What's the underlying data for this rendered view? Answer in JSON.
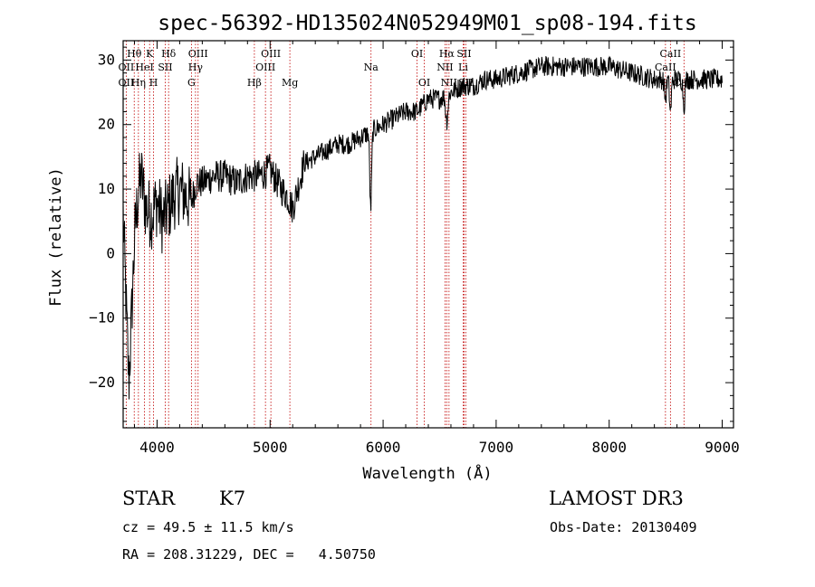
{
  "chart_data": {
    "type": "line",
    "title": "spec-56392-HD135024N052949M01_sp08-194.fits",
    "xlabel": "Wavelength (Å)",
    "ylabel": "Flux (relative)",
    "xlim": [
      3700,
      9100
    ],
    "ylim": [
      -27,
      33
    ],
    "xticks": [
      4000,
      5000,
      6000,
      7000,
      8000,
      9000
    ],
    "yticks": [
      -20,
      -10,
      0,
      10,
      20,
      30
    ],
    "grid": false,
    "spectrum_anchors": [
      [
        3700,
        6
      ],
      [
        3730,
        -10
      ],
      [
        3750,
        -20
      ],
      [
        3770,
        -12
      ],
      [
        3800,
        2
      ],
      [
        3830,
        9
      ],
      [
        3860,
        12
      ],
      [
        3900,
        7
      ],
      [
        3950,
        6
      ],
      [
        4000,
        8
      ],
      [
        4050,
        5
      ],
      [
        4100,
        7
      ],
      [
        4150,
        9
      ],
      [
        4200,
        10
      ],
      [
        4250,
        9
      ],
      [
        4300,
        8
      ],
      [
        4350,
        11
      ],
      [
        4400,
        11
      ],
      [
        4500,
        12
      ],
      [
        4600,
        12
      ],
      [
        4700,
        11
      ],
      [
        4800,
        12
      ],
      [
        4900,
        12
      ],
      [
        5000,
        13
      ],
      [
        5100,
        10
      ],
      [
        5150,
        9
      ],
      [
        5200,
        7
      ],
      [
        5300,
        14
      ],
      [
        5400,
        15
      ],
      [
        5500,
        16
      ],
      [
        5600,
        17
      ],
      [
        5700,
        17
      ],
      [
        5800,
        18
      ],
      [
        5900,
        19
      ],
      [
        6000,
        20
      ],
      [
        6100,
        21
      ],
      [
        6200,
        22
      ],
      [
        6300,
        22
      ],
      [
        6400,
        24
      ],
      [
        6500,
        24
      ],
      [
        6600,
        25
      ],
      [
        6700,
        26
      ],
      [
        6800,
        26
      ],
      [
        6900,
        27
      ],
      [
        7000,
        27
      ],
      [
        7200,
        28
      ],
      [
        7400,
        29
      ],
      [
        7600,
        29
      ],
      [
        7800,
        29
      ],
      [
        8000,
        29
      ],
      [
        8200,
        28
      ],
      [
        8400,
        27
      ],
      [
        8600,
        27
      ],
      [
        8800,
        27
      ],
      [
        8900,
        27
      ],
      [
        9000,
        27
      ]
    ],
    "absorption_features": [
      {
        "x": 5890,
        "depth": 12,
        "width": 8
      },
      {
        "x": 6563,
        "depth": 4,
        "width": 10
      },
      {
        "x": 8498,
        "depth": 3,
        "width": 8
      },
      {
        "x": 8542,
        "depth": 5,
        "width": 8
      },
      {
        "x": 8662,
        "depth": 4,
        "width": 8
      }
    ],
    "line_markers": [
      {
        "label": "Hθ",
        "x": 3798,
        "row": 1
      },
      {
        "label": "OII",
        "x": 3727,
        "row": 2
      },
      {
        "label": "OII",
        "x": 3727,
        "row": 3
      },
      {
        "label": "Hη",
        "x": 3835,
        "row": 3
      },
      {
        "label": "K",
        "x": 3934,
        "row": 1
      },
      {
        "label": "HeI",
        "x": 3889,
        "row": 2
      },
      {
        "label": "H",
        "x": 3969,
        "row": 3
      },
      {
        "label": "SII",
        "x": 4072,
        "row": 2
      },
      {
        "label": "Hδ",
        "x": 4102,
        "row": 1
      },
      {
        "label": "OIII",
        "x": 4363,
        "row": 1
      },
      {
        "label": "Hγ",
        "x": 4340,
        "row": 2
      },
      {
        "label": "G",
        "x": 4304,
        "row": 3
      },
      {
        "label": "Hβ",
        "x": 4861,
        "row": 3
      },
      {
        "label": "OIII",
        "x": 5007,
        "row": 1
      },
      {
        "label": "OIII",
        "x": 4959,
        "row": 2
      },
      {
        "label": "Mg",
        "x": 5175,
        "row": 3
      },
      {
        "label": "Na",
        "x": 5893,
        "row": 2
      },
      {
        "label": "OI",
        "x": 6300,
        "row": 1
      },
      {
        "label": "OI",
        "x": 6364,
        "row": 3
      },
      {
        "label": "Hα",
        "x": 6563,
        "row": 1
      },
      {
        "label": "SII",
        "x": 6716,
        "row": 1
      },
      {
        "label": "NII",
        "x": 6548,
        "row": 2
      },
      {
        "label": "Li",
        "x": 6708,
        "row": 2
      },
      {
        "label": "NII",
        "x": 6583,
        "row": 3
      },
      {
        "label": "SII",
        "x": 6731,
        "row": 3
      },
      {
        "label": "CaII",
        "x": 8542,
        "row": 1
      },
      {
        "label": "CaII",
        "x": 8498,
        "row": 2
      },
      {
        "label": "CaII",
        "x": 8662,
        "row": 3
      }
    ]
  },
  "info": {
    "object_class": "STAR",
    "subclass": "K7",
    "survey": "LAMOST DR3",
    "redshift_text": "cz = 49.5 ± 11.5 km/s",
    "obs_date": "Obs-Date: 20130409",
    "coords_text": "RA = 208.31229, DEC =   4.50750"
  }
}
